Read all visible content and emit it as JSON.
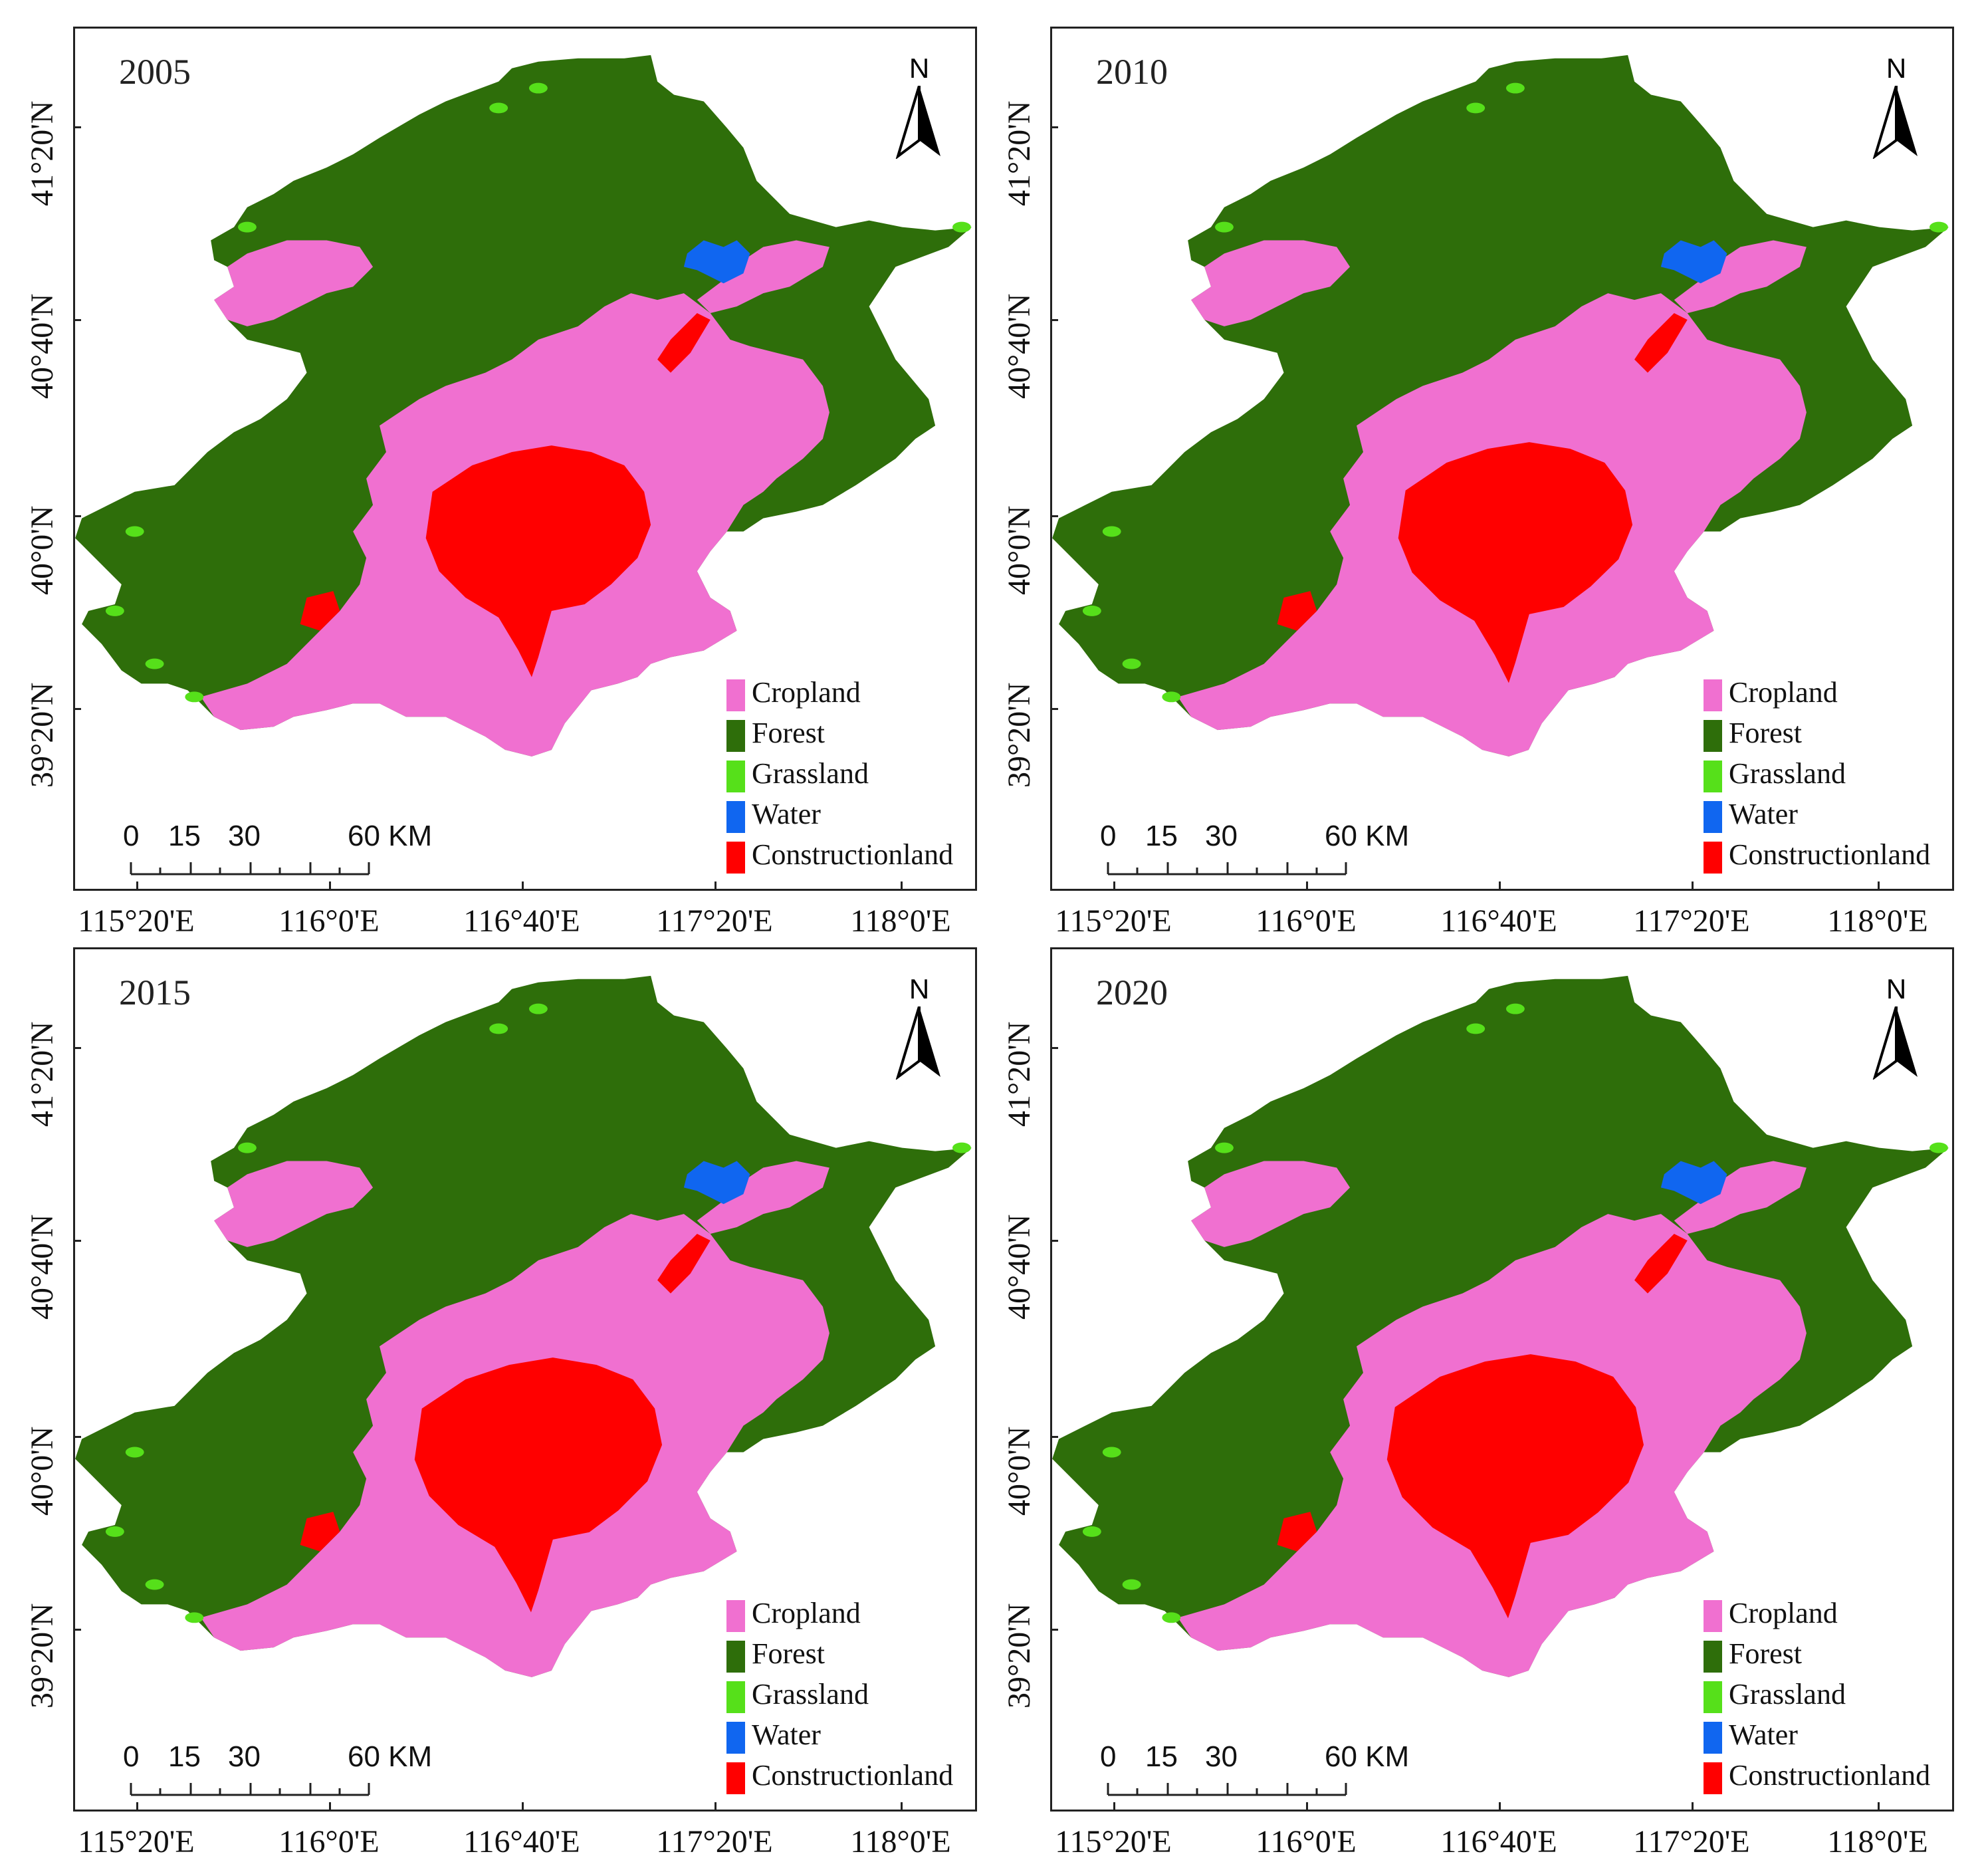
{
  "figure": {
    "panels": [
      {
        "year": "2005"
      },
      {
        "year": "2010"
      },
      {
        "year": "2015"
      },
      {
        "year": "2020"
      }
    ],
    "north_label": "N",
    "legend": [
      {
        "label": "Cropland",
        "color": "#f070d0"
      },
      {
        "label": "Forest",
        "color": "#2e6e0a"
      },
      {
        "label": "Grassland",
        "color": "#56e01a"
      },
      {
        "label": "Water",
        "color": "#1066f0"
      },
      {
        "label": "Constructionland",
        "color": "#ff0000"
      }
    ],
    "scale_labels": [
      "0",
      "15",
      "30",
      "60 KM"
    ],
    "lat_labels": [
      "41°20'N",
      "40°40'N",
      "40°0'N",
      "39°20'N"
    ],
    "lon_labels": [
      "115°20'E",
      "116°0'E",
      "116°40'E",
      "117°20'E",
      "118°0'E"
    ]
  }
}
